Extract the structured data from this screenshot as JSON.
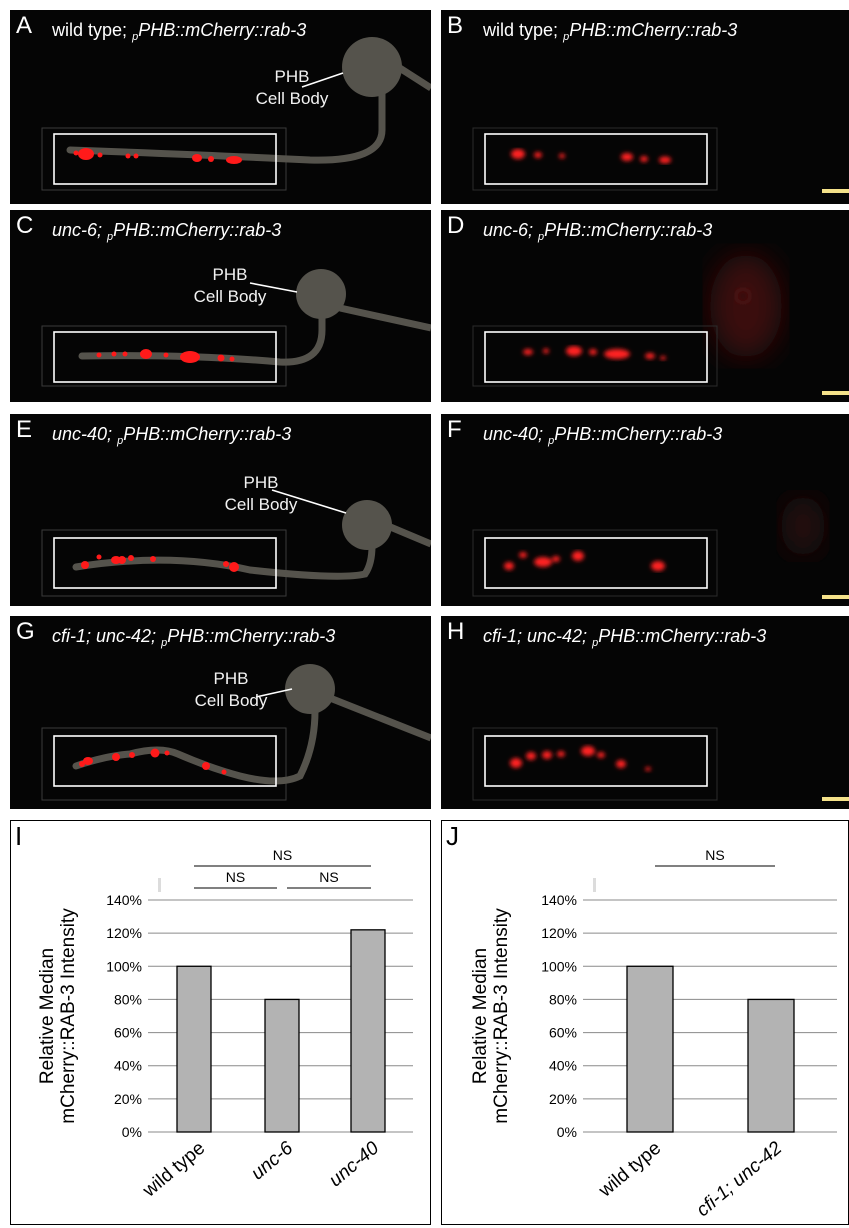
{
  "panels": [
    {
      "label": "A",
      "plain": "wild type;",
      "sub": "p",
      "gene": "PHB::mCherry::rab-3",
      "cell_body": [
        "PHB",
        "Cell Body"
      ]
    },
    {
      "label": "B",
      "plain": "wild type;",
      "sub": "p",
      "gene": "PHB::mCherry::rab-3"
    },
    {
      "label": "C",
      "ital": "unc-6;",
      "sub": "p",
      "gene": "PHB::mCherry::rab-3",
      "cell_body": [
        "PHB",
        "Cell Body"
      ]
    },
    {
      "label": "D",
      "ital": "unc-6;",
      "sub": "p",
      "gene": "PHB::mCherry::rab-3"
    },
    {
      "label": "E",
      "ital": "unc-40;",
      "sub": "p",
      "gene": "PHB::mCherry::rab-3",
      "cell_body": [
        "PHB",
        "Cell Body"
      ]
    },
    {
      "label": "F",
      "ital": "unc-40;",
      "sub": "p",
      "gene": "PHB::mCherry::rab-3"
    },
    {
      "label": "G",
      "ital": "cfi-1; unc-42;",
      "sub": "p",
      "gene": "PHB::mCherry::rab-3",
      "cell_body": [
        "PHB",
        "Cell Body"
      ]
    },
    {
      "label": "H",
      "ital": "cfi-1; unc-42;",
      "sub": "p",
      "gene": "PHB::mCherry::rab-3"
    }
  ],
  "chart_data": [
    {
      "panel_label": "I",
      "type": "bar",
      "categories": [
        "wild type",
        "unc-6",
        "unc-40"
      ],
      "values": [
        100,
        80,
        122
      ],
      "ylabel": [
        "Relative Median",
        "mCherry::RAB-3 Intensity"
      ],
      "yticks": [
        "0%",
        "20%",
        "40%",
        "60%",
        "80%",
        "100%",
        "120%",
        "140%"
      ],
      "ylim": [
        0,
        140
      ],
      "significance": [
        {
          "text": "NS",
          "from": 0,
          "to": 2
        },
        {
          "text": "NS",
          "from": 0,
          "to": 1
        },
        {
          "text": "NS",
          "from": 1,
          "to": 2
        }
      ],
      "grid": true
    },
    {
      "panel_label": "J",
      "type": "bar",
      "categories": [
        "wild type",
        "cfi-1; unc-42"
      ],
      "values": [
        100,
        80
      ],
      "ylabel": [
        "Relative Median",
        "mCherry::RAB-3 Intensity"
      ],
      "yticks": [
        "0%",
        "20%",
        "40%",
        "60%",
        "80%",
        "100%",
        "120%",
        "140%"
      ],
      "ylim": [
        0,
        140
      ],
      "significance": [
        {
          "text": "NS",
          "from": 0,
          "to": 1
        }
      ],
      "grid": true
    }
  ],
  "colors": {
    "puncta": "#ff1a1a",
    "axon": "#55534c",
    "bar": "#b3b3b3",
    "scale_bar": "#f5e28a"
  }
}
